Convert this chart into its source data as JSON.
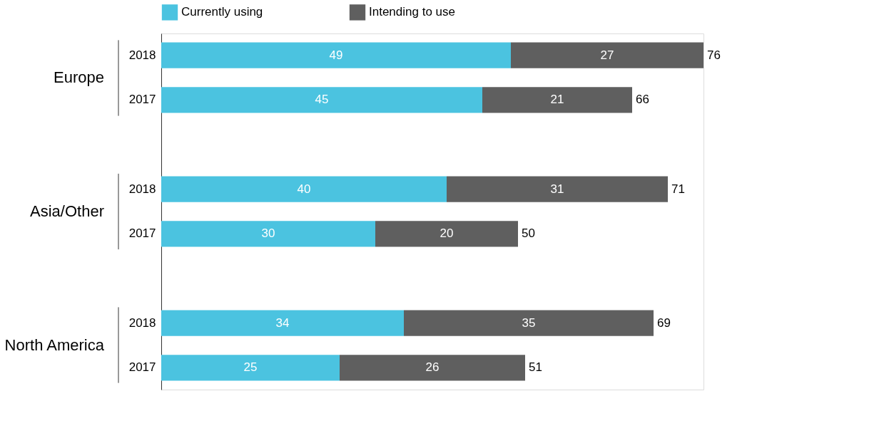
{
  "chart_data": {
    "type": "bar",
    "orientation": "horizontal",
    "stacked": true,
    "categories": [
      "2018",
      "2017",
      null,
      "2018",
      "2017",
      null,
      "2018",
      "2017"
    ],
    "series": [
      {
        "name": "Currently using",
        "color": "#4bc3e0",
        "values": [
          49,
          45,
          null,
          40,
          30,
          null,
          34,
          25
        ]
      },
      {
        "name": "Intending to use",
        "color": "#5f5f5f",
        "values": [
          27,
          21,
          null,
          31,
          20,
          null,
          35,
          26
        ]
      }
    ],
    "totals": [
      "76",
      "66",
      null,
      "71",
      "50",
      null,
      "69",
      "51"
    ],
    "annotations": [
      "Europe",
      "Asia/Other",
      "North America"
    ],
    "data_labels": true,
    "legend": "top",
    "tick_labels": "y"
  }
}
